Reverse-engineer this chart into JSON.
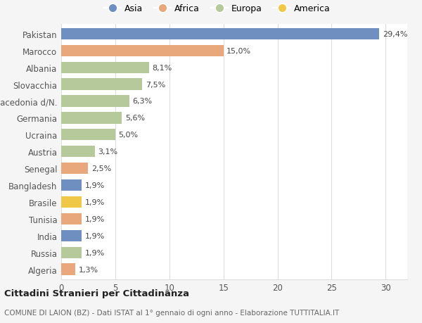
{
  "categories": [
    "Pakistan",
    "Marocco",
    "Albania",
    "Slovacchia",
    "Macedonia d/N.",
    "Germania",
    "Ucraina",
    "Austria",
    "Senegal",
    "Bangladesh",
    "Brasile",
    "Tunisia",
    "India",
    "Russia",
    "Algeria"
  ],
  "values": [
    29.4,
    15.0,
    8.1,
    7.5,
    6.3,
    5.6,
    5.0,
    3.1,
    2.5,
    1.9,
    1.9,
    1.9,
    1.9,
    1.9,
    1.3
  ],
  "labels": [
    "29,4%",
    "15,0%",
    "8,1%",
    "7,5%",
    "6,3%",
    "5,6%",
    "5,0%",
    "3,1%",
    "2,5%",
    "1,9%",
    "1,9%",
    "1,9%",
    "1,9%",
    "1,9%",
    "1,3%"
  ],
  "continents": [
    "Asia",
    "Africa",
    "Europa",
    "Europa",
    "Europa",
    "Europa",
    "Europa",
    "Europa",
    "Africa",
    "Asia",
    "America",
    "Africa",
    "Asia",
    "Europa",
    "Africa"
  ],
  "colors": {
    "Asia": "#6e8fc0",
    "Africa": "#e8a87c",
    "Europa": "#b5c99a",
    "America": "#f0c848"
  },
  "xlim": [
    0,
    32
  ],
  "xticks": [
    0,
    5,
    10,
    15,
    20,
    25,
    30
  ],
  "title": "Cittadini Stranieri per Cittadinanza",
  "subtitle": "COMUNE DI LAION (BZ) - Dati ISTAT al 1° gennaio di ogni anno - Elaborazione TUTTITALIA.IT",
  "background_color": "#f5f5f5",
  "plot_background": "#ffffff",
  "bar_height": 0.68,
  "grid_color": "#dddddd",
  "legend_order": [
    "Asia",
    "Africa",
    "Europa",
    "America"
  ]
}
